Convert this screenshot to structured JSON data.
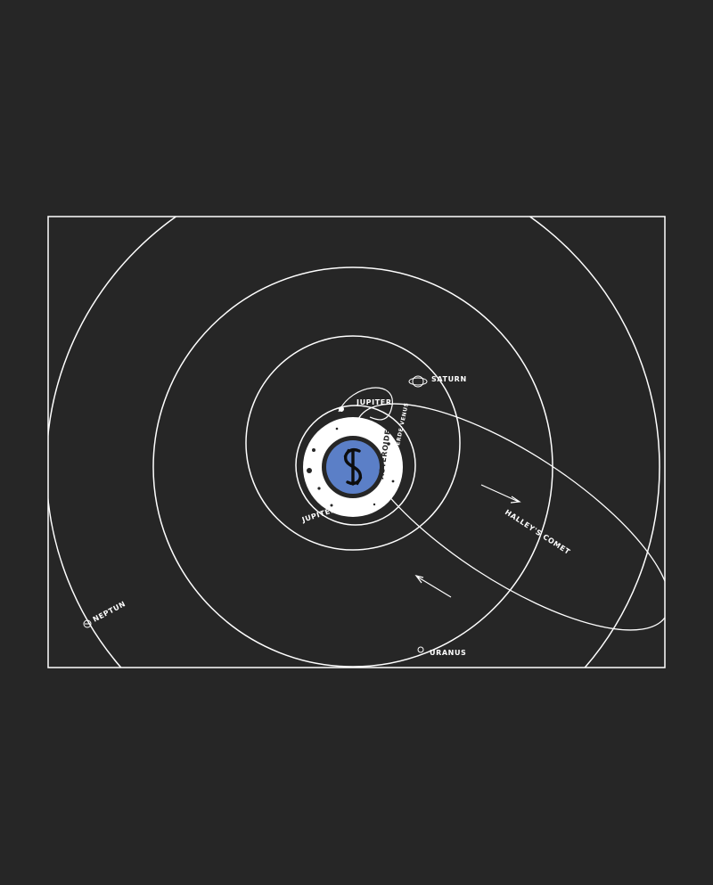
{
  "background_color": "#262626",
  "line_color": "#ffffff",
  "logo_color": "#5b7fc7",
  "logo_icon": "yearn-finance-logo",
  "labels": {
    "saturn": "SATURN",
    "jupiter_top": "JUPITER",
    "jupiter_bottom": "JUPITER",
    "asteroids": "ASTEROIDEN",
    "asteroid_note": "ERDE·VENUS",
    "halleys_comet": "HALLEY'S COMET",
    "uranus": "URANUS",
    "neptune": "NEPTUN"
  }
}
